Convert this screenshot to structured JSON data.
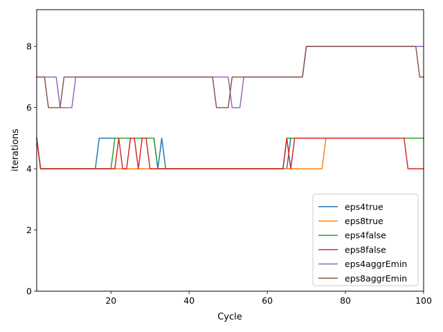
{
  "chart_data": {
    "type": "line",
    "xlabel": "Cycle",
    "ylabel": "iterations",
    "xlim": [
      1,
      100
    ],
    "ylim": [
      0,
      9.2
    ],
    "xticks": [
      20,
      40,
      60,
      80,
      100
    ],
    "yticks": [
      0,
      2,
      4,
      6,
      8
    ],
    "grid": false,
    "legend_position": "lower-right",
    "series": [
      {
        "name": "eps4true",
        "color": "#1f77b4",
        "points": [
          [
            1,
            5
          ],
          [
            2,
            4
          ],
          [
            16,
            4
          ],
          [
            17,
            5
          ],
          [
            31,
            5
          ],
          [
            32,
            4
          ],
          [
            33,
            5
          ],
          [
            34,
            4
          ],
          [
            65,
            4
          ],
          [
            66,
            5
          ],
          [
            100,
            5
          ]
        ]
      },
      {
        "name": "eps8true",
        "color": "#ff7f0e",
        "points": [
          [
            1,
            5
          ],
          [
            2,
            4
          ],
          [
            74,
            4
          ],
          [
            75,
            5
          ],
          [
            100,
            5
          ]
        ]
      },
      {
        "name": "eps4false",
        "color": "#2ca02c",
        "points": [
          [
            1,
            5
          ],
          [
            2,
            4
          ],
          [
            20,
            4
          ],
          [
            21,
            5
          ],
          [
            31,
            5
          ],
          [
            32,
            4
          ],
          [
            64,
            4
          ],
          [
            65,
            5
          ],
          [
            100,
            5
          ]
        ]
      },
      {
        "name": "eps8false",
        "color": "#d62728",
        "points": [
          [
            1,
            5
          ],
          [
            2,
            4
          ],
          [
            21,
            4
          ],
          [
            22,
            5
          ],
          [
            23,
            4
          ],
          [
            24,
            4
          ],
          [
            25,
            5
          ],
          [
            26,
            5
          ],
          [
            27,
            4
          ],
          [
            28,
            5
          ],
          [
            29,
            5
          ],
          [
            30,
            4
          ],
          [
            64,
            4
          ],
          [
            65,
            5
          ],
          [
            66,
            4
          ],
          [
            67,
            5
          ],
          [
            95,
            5
          ],
          [
            96,
            4
          ],
          [
            100,
            4
          ]
        ]
      },
      {
        "name": "eps4aggrEmin",
        "color": "#9467bd",
        "points": [
          [
            1,
            7
          ],
          [
            5,
            7
          ],
          [
            6,
            7
          ],
          [
            7,
            6
          ],
          [
            9,
            6
          ],
          [
            10,
            6
          ],
          [
            11,
            7
          ],
          [
            49,
            7
          ],
          [
            50,
            7
          ],
          [
            51,
            6
          ],
          [
            53,
            6
          ],
          [
            54,
            7
          ],
          [
            69,
            7
          ],
          [
            70,
            8
          ],
          [
            100,
            8
          ]
        ]
      },
      {
        "name": "eps8aggrEmin",
        "color": "#8c564b",
        "points": [
          [
            1,
            7
          ],
          [
            3,
            7
          ],
          [
            4,
            6
          ],
          [
            6,
            6
          ],
          [
            7,
            6
          ],
          [
            8,
            7
          ],
          [
            46,
            7
          ],
          [
            47,
            6
          ],
          [
            50,
            6
          ],
          [
            51,
            7
          ],
          [
            69,
            7
          ],
          [
            70,
            8
          ],
          [
            98,
            8
          ],
          [
            99,
            7
          ],
          [
            100,
            7
          ]
        ]
      }
    ]
  }
}
